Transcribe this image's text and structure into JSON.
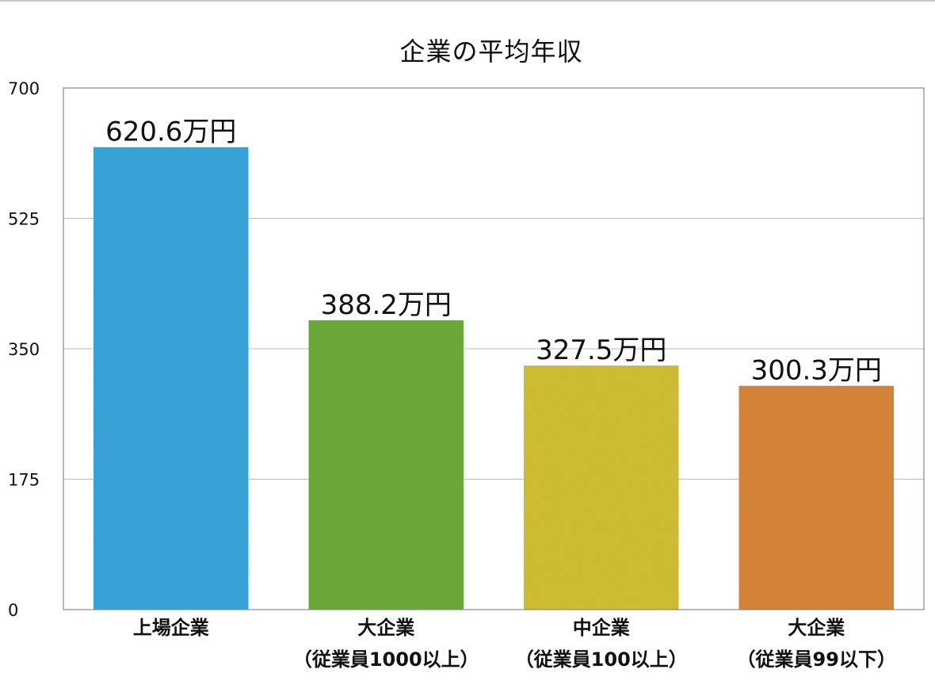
{
  "chart_data": {
    "type": "bar",
    "title": "企業の平均年収",
    "xlabel": "",
    "ylabel": "",
    "ylim": [
      0,
      700
    ],
    "yticks": [
      0,
      175,
      350,
      525,
      700
    ],
    "grid": true,
    "legend": "none",
    "categories": [
      {
        "line1": "上場企業",
        "line2": ""
      },
      {
        "line1": "大企業",
        "line2": "（従業員1000以上）"
      },
      {
        "line1": "中企業",
        "line2": "（従業員100以上）"
      },
      {
        "line1": "大企業",
        "line2": "（従業員99以下）"
      }
    ],
    "values": [
      620.6,
      388.2,
      327.5,
      300.3
    ],
    "data_labels": [
      "620.6万円",
      "388.2万円",
      "327.5万円",
      "300.3万円"
    ],
    "colors": [
      "#3aa6dc",
      "#6cac3a",
      "#d2bf35",
      "#d98538"
    ]
  }
}
